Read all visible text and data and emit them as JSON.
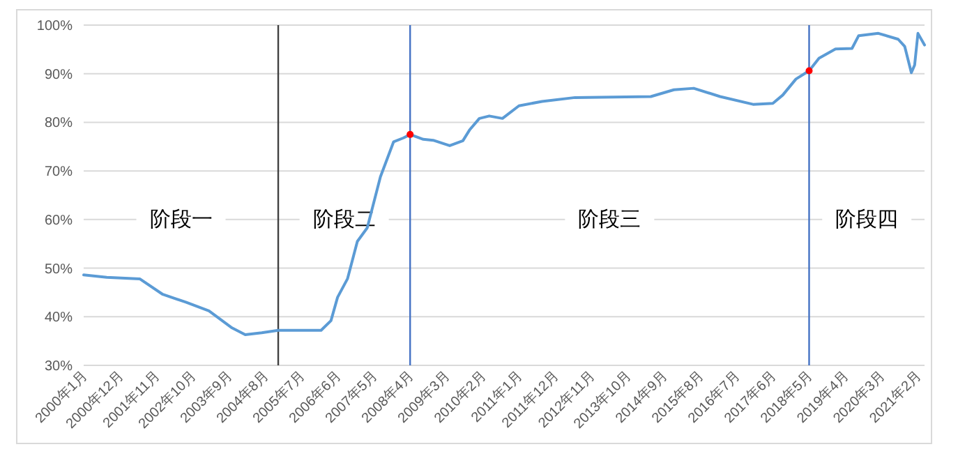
{
  "chart_data": {
    "type": "line",
    "x": [
      "2000-01",
      "2000-08",
      "2001-06",
      "2002-01",
      "2002-08",
      "2003-03",
      "2003-10",
      "2004-02",
      "2004-07",
      "2004-12",
      "2006-01",
      "2006-04",
      "2006-06",
      "2006-09",
      "2006-12",
      "2007-03",
      "2007-07",
      "2007-11",
      "2008-02",
      "2008-04",
      "2008-08",
      "2008-11",
      "2009-04",
      "2009-08",
      "2009-10",
      "2010-01",
      "2010-04",
      "2010-08",
      "2011-01",
      "2011-08",
      "2012-06",
      "2014-05",
      "2014-12",
      "2015-06",
      "2016-02",
      "2016-12",
      "2017-06",
      "2017-09",
      "2018-01",
      "2018-05",
      "2018-08",
      "2019-01",
      "2019-06",
      "2019-08",
      "2020-02",
      "2020-08",
      "2020-10",
      "2020-12",
      "2021-01",
      "2021-02",
      "2021-04"
    ],
    "series": [
      {
        "color": "#5b9bd5",
        "values": [
          48.6,
          48.1,
          47.8,
          44.6,
          43.0,
          41.2,
          37.7,
          36.3,
          36.7,
          37.2,
          37.2,
          39.2,
          44,
          47.8,
          55.5,
          58.3,
          68.8,
          76.0,
          76.8,
          77.5,
          76.5,
          76.3,
          75.2,
          76.2,
          78.4,
          80.8,
          81.3,
          80.8,
          83.4,
          84.3,
          85.1,
          85.3,
          86.7,
          87.0,
          85.3,
          83.7,
          83.9,
          85.6,
          88.9,
          90.6,
          93.2,
          95.1,
          95.2,
          97.8,
          98.3,
          97.1,
          95.6,
          90.2,
          91.8,
          98.3,
          95.9
        ]
      },
      {
        "type": "scatter",
        "color": "#ff0000",
        "x": [
          "2008-04",
          "2018-05"
        ],
        "values": [
          77.5,
          90.6
        ]
      }
    ],
    "xlim": [
      "2000-01",
      "2021-04"
    ],
    "xticks": [
      {
        "value": "2000-01",
        "label": "2000年1月"
      },
      {
        "value": "2000-12",
        "label": "2000年12月"
      },
      {
        "value": "2001-11",
        "label": "2001年11月"
      },
      {
        "value": "2002-10",
        "label": "2002年10月"
      },
      {
        "value": "2003-09",
        "label": "2003年9月"
      },
      {
        "value": "2004-08",
        "label": "2004年8月"
      },
      {
        "value": "2005-07",
        "label": "2005年7月"
      },
      {
        "value": "2006-06",
        "label": "2006年6月"
      },
      {
        "value": "2007-05",
        "label": "2007年5月"
      },
      {
        "value": "2008-04",
        "label": "2008年4月"
      },
      {
        "value": "2009-03",
        "label": "2009年3月"
      },
      {
        "value": "2010-02",
        "label": "2010年2月"
      },
      {
        "value": "2011-01",
        "label": "2011年1月"
      },
      {
        "value": "2011-12",
        "label": "2011年12月"
      },
      {
        "value": "2012-11",
        "label": "2012年11月"
      },
      {
        "value": "2013-10",
        "label": "2013年10月"
      },
      {
        "value": "2014-09",
        "label": "2014年9月"
      },
      {
        "value": "2015-08",
        "label": "2015年8月"
      },
      {
        "value": "2016-07",
        "label": "2016年7月"
      },
      {
        "value": "2017-06",
        "label": "2017年6月"
      },
      {
        "value": "2018-05",
        "label": "2018年5月"
      },
      {
        "value": "2019-04",
        "label": "2019年4月"
      },
      {
        "value": "2020-03",
        "label": "2020年3月"
      },
      {
        "value": "2021-02",
        "label": "2021年2月"
      }
    ],
    "ylim": [
      30,
      100
    ],
    "yticks": [
      {
        "value": 30,
        "label": "30%"
      },
      {
        "value": 40,
        "label": "40%"
      },
      {
        "value": 50,
        "label": "50%"
      },
      {
        "value": 60,
        "label": "60%"
      },
      {
        "value": 70,
        "label": "70%"
      },
      {
        "value": 80,
        "label": "80%"
      },
      {
        "value": 90,
        "label": "90%"
      },
      {
        "value": 100,
        "label": "100%"
      }
    ],
    "grid": "y",
    "ref_lines": [
      {
        "axis": "x",
        "value": "2004-12",
        "color": "#404040"
      },
      {
        "axis": "x",
        "value": "2008-04",
        "color": "#4472c4"
      },
      {
        "axis": "x",
        "value": "2018-05",
        "color": "#4472c4"
      }
    ],
    "annotations": [
      "阶段一",
      "阶段二",
      "阶段三",
      "阶段四"
    ]
  }
}
